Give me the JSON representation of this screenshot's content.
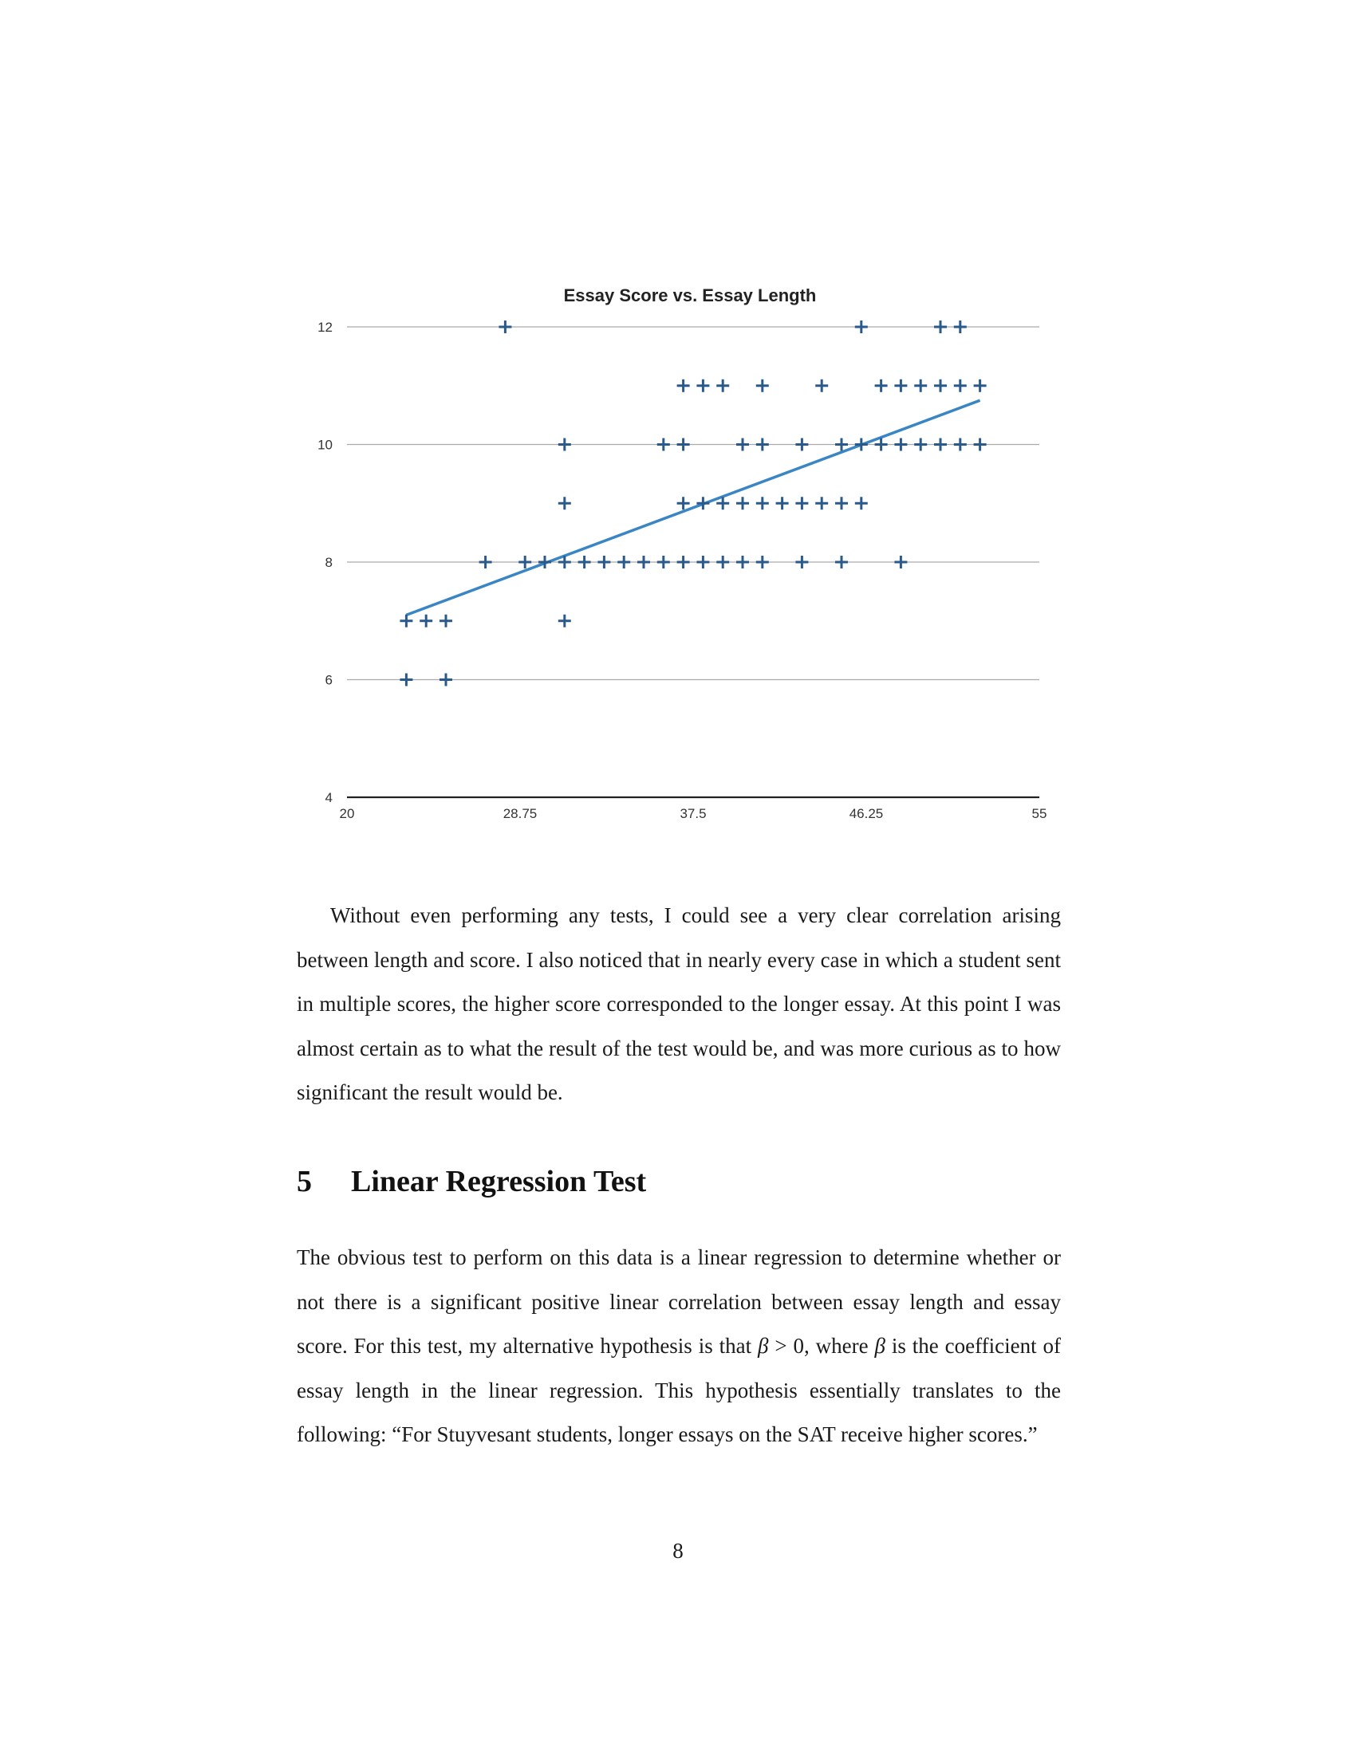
{
  "chart_data": {
    "type": "scatter",
    "title": "Essay Score vs. Essay Length",
    "xlabel": "",
    "ylabel": "",
    "xlim": [
      20,
      55
    ],
    "ylim": [
      4,
      12
    ],
    "x_ticks": [
      "20",
      "28.75",
      "37.5",
      "46.25",
      "55"
    ],
    "y_ticks": [
      "4",
      "6",
      "8",
      "10",
      "12"
    ],
    "grid": "horizontal",
    "marker": "plus",
    "colors": {
      "points": "#2a5a8c",
      "trendline": "#3a86c4",
      "grid": "#aaaaaa",
      "axis": "#222222"
    },
    "points": [
      {
        "x": 28,
        "y": 12
      },
      {
        "x": 46,
        "y": 12
      },
      {
        "x": 50,
        "y": 12
      },
      {
        "x": 51,
        "y": 12
      },
      {
        "x": 37,
        "y": 11
      },
      {
        "x": 38,
        "y": 11
      },
      {
        "x": 39,
        "y": 11
      },
      {
        "x": 41,
        "y": 11
      },
      {
        "x": 44,
        "y": 11
      },
      {
        "x": 47,
        "y": 11
      },
      {
        "x": 48,
        "y": 11
      },
      {
        "x": 49,
        "y": 11
      },
      {
        "x": 50,
        "y": 11
      },
      {
        "x": 51,
        "y": 11
      },
      {
        "x": 52,
        "y": 11
      },
      {
        "x": 31,
        "y": 10
      },
      {
        "x": 36,
        "y": 10
      },
      {
        "x": 37,
        "y": 10
      },
      {
        "x": 40,
        "y": 10
      },
      {
        "x": 41,
        "y": 10
      },
      {
        "x": 43,
        "y": 10
      },
      {
        "x": 45,
        "y": 10
      },
      {
        "x": 46,
        "y": 10
      },
      {
        "x": 47,
        "y": 10
      },
      {
        "x": 48,
        "y": 10
      },
      {
        "x": 49,
        "y": 10
      },
      {
        "x": 50,
        "y": 10
      },
      {
        "x": 51,
        "y": 10
      },
      {
        "x": 52,
        "y": 10
      },
      {
        "x": 31,
        "y": 9
      },
      {
        "x": 37,
        "y": 9
      },
      {
        "x": 38,
        "y": 9
      },
      {
        "x": 39,
        "y": 9
      },
      {
        "x": 40,
        "y": 9
      },
      {
        "x": 41,
        "y": 9
      },
      {
        "x": 42,
        "y": 9
      },
      {
        "x": 43,
        "y": 9
      },
      {
        "x": 44,
        "y": 9
      },
      {
        "x": 45,
        "y": 9
      },
      {
        "x": 46,
        "y": 9
      },
      {
        "x": 27,
        "y": 8
      },
      {
        "x": 29,
        "y": 8
      },
      {
        "x": 30,
        "y": 8
      },
      {
        "x": 31,
        "y": 8
      },
      {
        "x": 32,
        "y": 8
      },
      {
        "x": 33,
        "y": 8
      },
      {
        "x": 34,
        "y": 8
      },
      {
        "x": 35,
        "y": 8
      },
      {
        "x": 36,
        "y": 8
      },
      {
        "x": 37,
        "y": 8
      },
      {
        "x": 38,
        "y": 8
      },
      {
        "x": 39,
        "y": 8
      },
      {
        "x": 40,
        "y": 8
      },
      {
        "x": 41,
        "y": 8
      },
      {
        "x": 43,
        "y": 8
      },
      {
        "x": 45,
        "y": 8
      },
      {
        "x": 48,
        "y": 8
      },
      {
        "x": 23,
        "y": 7
      },
      {
        "x": 24,
        "y": 7
      },
      {
        "x": 25,
        "y": 7
      },
      {
        "x": 31,
        "y": 7
      },
      {
        "x": 23,
        "y": 6
      },
      {
        "x": 25,
        "y": 6
      }
    ],
    "trendline": [
      {
        "x": 23,
        "y": 7.1
      },
      {
        "x": 52,
        "y": 10.75
      }
    ]
  },
  "text": {
    "paragraph1": "Without even performing any tests, I could see a very clear correlation arising between length and score. I also noticed that in nearly every case in which a student sent in multiple scores, the higher score corresponded to the longer essay. At this point I was almost certain as to what the result of the test would be, and was more curious as to how significant the result would be.",
    "section_number": "5",
    "section_title": "Linear Regression Test",
    "paragraph2_a": "The obvious test to perform on this data is a linear regression to determine whether or not there is a significant positive linear correlation between essay length and essay score. For this test, my alternative hypothesis is that ",
    "beta": "β",
    "paragraph2_b": " > 0, where ",
    "paragraph2_c": " is the coefficient of essay length in the linear regression. This hypothesis essentially translates to the following: “For Stuyvesant students, longer essays on the SAT receive higher scores.”",
    "page_number": "8"
  }
}
